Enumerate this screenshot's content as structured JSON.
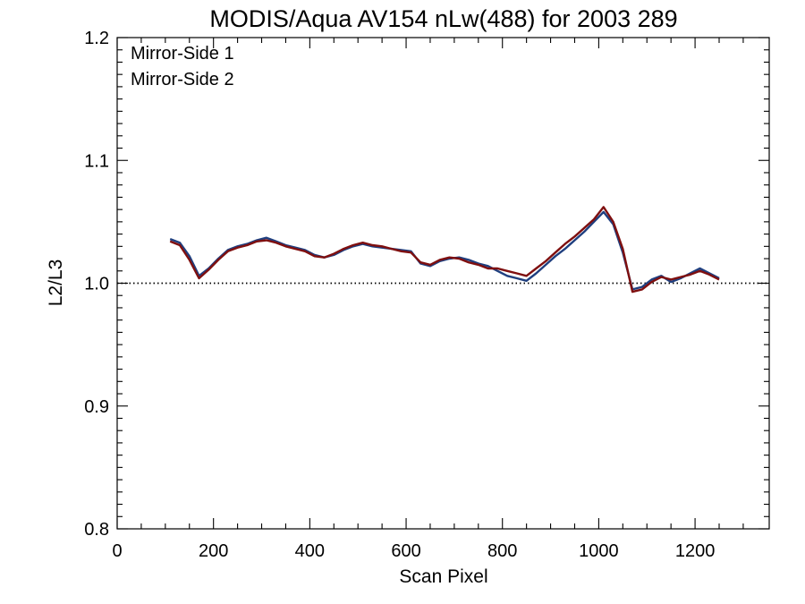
{
  "chart_data": {
    "type": "line",
    "title": "MODIS/Aqua AV154 nLw(488) for 2003 289",
    "xlabel": "Scan Pixel",
    "ylabel": "L2/L3",
    "xlim": [
      0,
      1354
    ],
    "ylim": [
      0.8,
      1.2
    ],
    "x_ticks": [
      "0",
      "200",
      "400",
      "600",
      "800",
      "1000",
      "1200"
    ],
    "y_ticks": [
      "0.8",
      "0.9",
      "1.0",
      "1.1",
      "1.2"
    ],
    "reference_line": {
      "y": 1.0,
      "style": "dotted"
    },
    "legend_position": "top-left",
    "grid": false,
    "colors": {
      "mirror_side_1": "#1f3f7f",
      "mirror_side_2": "#7f0f0f"
    },
    "x": [
      110,
      130,
      150,
      170,
      190,
      210,
      230,
      250,
      270,
      290,
      310,
      330,
      350,
      370,
      390,
      410,
      430,
      450,
      470,
      490,
      510,
      530,
      550,
      570,
      590,
      610,
      630,
      650,
      670,
      690,
      710,
      730,
      750,
      770,
      790,
      810,
      830,
      850,
      870,
      890,
      910,
      930,
      950,
      970,
      990,
      1010,
      1030,
      1050,
      1070,
      1090,
      1110,
      1130,
      1150,
      1170,
      1190,
      1210,
      1230,
      1250
    ],
    "series": [
      {
        "name": "Mirror-Side 1",
        "values": [
          1.036,
          1.033,
          1.022,
          1.006,
          1.012,
          1.02,
          1.027,
          1.03,
          1.032,
          1.035,
          1.037,
          1.034,
          1.031,
          1.029,
          1.027,
          1.023,
          1.021,
          1.023,
          1.027,
          1.03,
          1.032,
          1.03,
          1.029,
          1.028,
          1.027,
          1.026,
          1.016,
          1.014,
          1.018,
          1.02,
          1.021,
          1.019,
          1.016,
          1.014,
          1.01,
          1.006,
          1.004,
          1.002,
          1.008,
          1.015,
          1.022,
          1.028,
          1.035,
          1.042,
          1.05,
          1.058,
          1.048,
          1.025,
          0.995,
          0.997,
          1.003,
          1.006,
          1.001,
          1.004,
          1.008,
          1.012,
          1.008,
          1.004
        ]
      },
      {
        "name": "Mirror-Side 2",
        "values": [
          1.034,
          1.031,
          1.019,
          1.004,
          1.011,
          1.019,
          1.026,
          1.029,
          1.031,
          1.034,
          1.035,
          1.033,
          1.03,
          1.028,
          1.026,
          1.022,
          1.021,
          1.024,
          1.028,
          1.031,
          1.033,
          1.031,
          1.03,
          1.028,
          1.026,
          1.025,
          1.017,
          1.015,
          1.019,
          1.021,
          1.02,
          1.017,
          1.015,
          1.012,
          1.012,
          1.01,
          1.008,
          1.006,
          1.012,
          1.018,
          1.025,
          1.032,
          1.038,
          1.045,
          1.052,
          1.062,
          1.05,
          1.028,
          0.993,
          0.995,
          1.001,
          1.005,
          1.003,
          1.005,
          1.007,
          1.01,
          1.007,
          1.003
        ]
      }
    ]
  }
}
